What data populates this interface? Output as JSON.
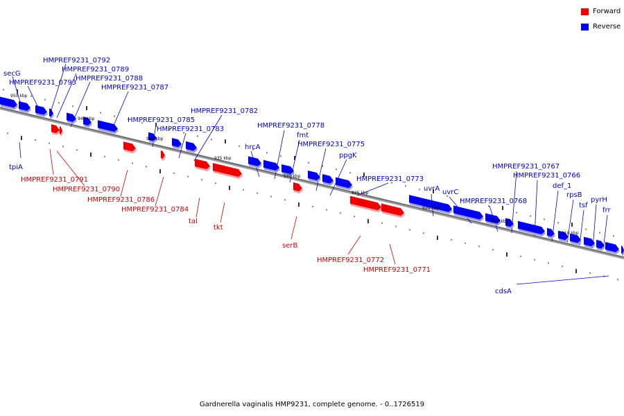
{
  "legend": {
    "forward_label": "Forward",
    "reverse_label": "Reverse",
    "forward_color": "#ee0000",
    "reverse_color": "#0000ee"
  },
  "caption": "Gardnerella vaginalis HMP9231, complete genome. - 0..1726519",
  "scale_labels": [
    "950 kbp",
    "945 kbp",
    "940 kbp",
    "935 kbp",
    "930 kbp",
    "925 kbp",
    "920 kbp",
    "915 kbp",
    "910 kbp"
  ],
  "labels": {
    "reverse": [
      "secG",
      "tpiA",
      "HMPREF9231_0793",
      "HMPREF9231_0792",
      "HMPREF9231_0789",
      "HMPREF9231_0788",
      "HMPREF9231_0787",
      "HMPREF9231_0785",
      "HMPREF9231_0783",
      "HMPREF9231_0782",
      "hrcA",
      "HMPREF9231_0778",
      "fmt",
      "HMPREF9231_0775",
      "ppgK",
      "HMPREF9231_0773",
      "uvrA",
      "uvrC",
      "HMPREF9231_0768",
      "HMPREF9231_0767",
      "HMPREF9231_0766",
      "def_1",
      "rpsB",
      "tsf",
      "pyrH",
      "frr",
      "cdsA"
    ],
    "forward": [
      "HMPREF9231_0791",
      "HMPREF9231_0790",
      "HMPREF9231_0786",
      "HMPREF9231_0784",
      "tal",
      "tkt",
      "serB",
      "HMPREF9231_0772",
      "HMPREF9231_0771"
    ]
  }
}
